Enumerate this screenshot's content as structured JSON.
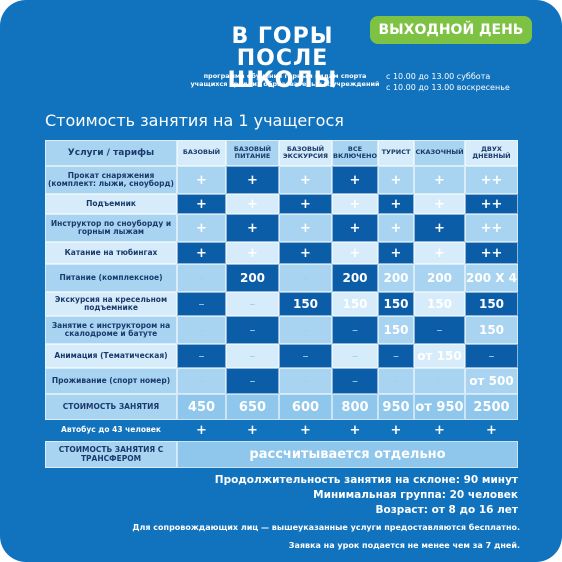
{
  "logo": {
    "line1": "В ГОРЫ",
    "line2": "ПОСЛЕ ШКОЛЫ"
  },
  "subtitle": {
    "line1": "программа обучения горным видам спорта",
    "line2": "учащихся средних образовательных учреждений"
  },
  "badge": "ВЫХОДНОЙ ДЕНЬ",
  "schedule": {
    "line1": "с 10.00 до 13.00 суббота",
    "line2": "с 10.00 до 13.00 воскресенье"
  },
  "table_title": "Стоимость занятия на 1 учащегося",
  "table": {
    "corner": "Услуги / тарифы",
    "headers": [
      "БАЗОВЫЙ",
      "БАЗОВЫЙ ПИТАНИЕ",
      "БАЗОВЫЙ ЭКСКУРСИЯ",
      "ВСЕ ВКЛЮЧЕНО",
      "ТУРИСТ",
      "СКАЗОЧНЫЙ",
      "ДВУХ ДНЕВНЫЙ"
    ],
    "rows": [
      {
        "label": "Прокат снаряжения (комплект: лыжи, сноуборд)",
        "cells": [
          "+",
          "+",
          "+",
          "+",
          "+",
          "+",
          "++"
        ]
      },
      {
        "label": "Подъемник",
        "cells": [
          "+",
          "+",
          "+",
          "+",
          "+",
          "+",
          "++"
        ]
      },
      {
        "label": "Инструктор по сноуборду и горным лыжам",
        "cells": [
          "+",
          "+",
          "+",
          "+",
          "+",
          "+",
          "++"
        ]
      },
      {
        "label": "Катание на тюбингах",
        "cells": [
          "+",
          "+",
          "+",
          "+",
          "+",
          "+",
          "++"
        ]
      },
      {
        "label": "Питание (комплексное)",
        "cells": [
          "–",
          "200",
          "–",
          "200",
          "200",
          "200",
          "200 X 4"
        ]
      },
      {
        "label": "Экскурсия на кресельном подъемнике",
        "cells": [
          "–",
          "–",
          "150",
          "150",
          "150",
          "150",
          "150"
        ]
      },
      {
        "label": "Занятие с инструктором на скалодроме и батуте",
        "cells": [
          "–",
          "–",
          "–",
          "–",
          "150",
          "–",
          "150"
        ]
      },
      {
        "label": "Анимация (Тематическая)",
        "cells": [
          "–",
          "–",
          "–",
          "–",
          "–",
          "от 150",
          "–"
        ]
      },
      {
        "label": "Проживание (спорт номер)",
        "cells": [
          "–",
          "–",
          "–",
          "–",
          "–",
          "–",
          "от 500"
        ]
      },
      {
        "label": "СТОИМОСТЬ ЗАНЯТИЯ",
        "cells": [
          "450",
          "650",
          "600",
          "800",
          "950",
          "от 950",
          "2500"
        ]
      },
      {
        "label": "Автобус до 43 человек",
        "cells": [
          "+",
          "+",
          "+",
          "+",
          "+",
          "+",
          "+"
        ]
      }
    ],
    "transfer_label": "СТОИМОСТЬ ЗАНЯТИЯ С ТРАНСФЕРОМ",
    "transfer_value": "рассчитывается отдельно"
  },
  "info": {
    "duration": "Продолжительность занятия на склоне: 90 минут",
    "group": "Минимальная группа: 20 человек",
    "age": "Возраст: от 8 до 16 лет"
  },
  "notes": {
    "note1": "Для сопровождающих лиц — вышеуказанные услуги предоставляются бесплатно.",
    "note2": "Заявка на урок подается не менее чем за 7 дней."
  }
}
